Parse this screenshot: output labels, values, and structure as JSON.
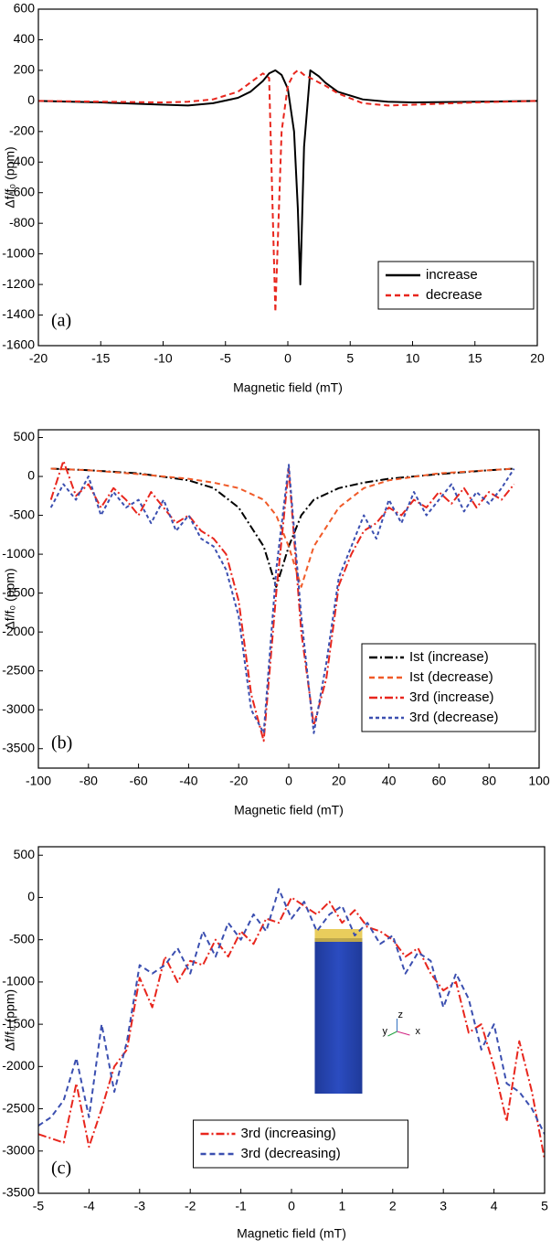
{
  "chart_data": [
    {
      "type": "line",
      "panel_label": "(a)",
      "x_label": "Magnetic field (mT)",
      "y_label": "Δf/f₀ (ppm)",
      "xlim": [
        -20,
        20
      ],
      "xticks": [
        -20,
        -15,
        -10,
        -5,
        0,
        5,
        10,
        15,
        20
      ],
      "ylim": [
        -1600,
        600
      ],
      "yticks": [
        -1600,
        -1400,
        -1200,
        -1000,
        -800,
        -600,
        -400,
        -200,
        0,
        200,
        400,
        600
      ],
      "legend": "lower right",
      "x": [
        -20,
        -15,
        -10,
        -8,
        -6,
        -4,
        -3,
        -2,
        -1.5,
        -1,
        -0.5,
        0,
        0.5,
        0.8,
        1,
        1.3,
        1.8,
        2.5,
        3,
        4,
        6,
        8,
        10,
        15,
        20
      ],
      "series": [
        {
          "name": "increase",
          "color": "#000000",
          "style": "solid",
          "values": [
            0,
            -10,
            -25,
            -30,
            -15,
            20,
            60,
            130,
            180,
            200,
            170,
            80,
            -200,
            -700,
            -1200,
            -300,
            200,
            160,
            120,
            60,
            10,
            -5,
            -10,
            -5,
            0
          ]
        },
        {
          "name": "decrease",
          "color": "#e8261d",
          "style": "dash",
          "values": [
            0,
            -5,
            -10,
            -5,
            10,
            60,
            120,
            180,
            150,
            -1380,
            -200,
            100,
            180,
            200,
            190,
            170,
            150,
            120,
            100,
            50,
            -15,
            -30,
            -25,
            -10,
            0
          ]
        }
      ]
    },
    {
      "type": "line",
      "panel_label": "(b)",
      "x_label": "Magnetic field (mT)",
      "y_label": "Δf/f₀ (ppm)",
      "xlim": [
        -100,
        100
      ],
      "xticks": [
        -100,
        -80,
        -60,
        -40,
        -20,
        0,
        20,
        40,
        60,
        80,
        100
      ],
      "ylim": [
        -3750,
        600
      ],
      "yticks": [
        -3500,
        -3000,
        -2500,
        -2000,
        -1500,
        -1000,
        -500,
        0,
        500
      ],
      "legend": "lower right",
      "series": [
        {
          "name": "Ist (increase)",
          "color": "#000000",
          "style": "dash-dot",
          "x": [
            -95,
            -80,
            -60,
            -40,
            -30,
            -20,
            -10,
            -5,
            0,
            5,
            10,
            20,
            30,
            40,
            60,
            80,
            90
          ],
          "values": [
            100,
            80,
            40,
            -50,
            -150,
            -400,
            -900,
            -1420,
            -900,
            -500,
            -300,
            -150,
            -80,
            -30,
            30,
            80,
            100
          ]
        },
        {
          "name": "Ist (decrease)",
          "color": "#f05a28",
          "style": "dash",
          "x": [
            -95,
            -80,
            -60,
            -40,
            -30,
            -20,
            -10,
            -5,
            0,
            5,
            10,
            20,
            30,
            40,
            60,
            80,
            90
          ],
          "values": [
            100,
            80,
            30,
            -30,
            -80,
            -150,
            -300,
            -500,
            -900,
            -1420,
            -900,
            -400,
            -150,
            -50,
            40,
            80,
            100
          ]
        },
        {
          "name": "3rd (increase)",
          "color": "#e8261d",
          "style": "dash-dot",
          "x": [
            -95,
            -90,
            -85,
            -80,
            -75,
            -70,
            -65,
            -60,
            -55,
            -50,
            -45,
            -40,
            -35,
            -30,
            -25,
            -20,
            -15,
            -10,
            -5,
            0,
            5,
            10,
            15,
            20,
            25,
            30,
            35,
            40,
            45,
            50,
            55,
            60,
            65,
            70,
            75,
            80,
            85,
            90
          ],
          "values": [
            -300,
            200,
            -250,
            -100,
            -400,
            -150,
            -300,
            -500,
            -200,
            -400,
            -600,
            -500,
            -700,
            -800,
            -1000,
            -1600,
            -2800,
            -3400,
            -1500,
            100,
            -2000,
            -3200,
            -2600,
            -1400,
            -1000,
            -700,
            -600,
            -400,
            -500,
            -300,
            -400,
            -200,
            -350,
            -150,
            -400,
            -200,
            -300,
            -100
          ]
        },
        {
          "name": "3rd (decrease)",
          "color": "#3b4fb0",
          "style": "dot",
          "x": [
            -95,
            -90,
            -85,
            -80,
            -75,
            -70,
            -65,
            -60,
            -55,
            -50,
            -45,
            -40,
            -35,
            -30,
            -25,
            -20,
            -15,
            -10,
            -5,
            0,
            5,
            10,
            15,
            20,
            25,
            30,
            35,
            40,
            45,
            50,
            55,
            60,
            65,
            70,
            75,
            80,
            85,
            90
          ],
          "values": [
            -400,
            -100,
            -300,
            0,
            -500,
            -200,
            -400,
            -300,
            -600,
            -300,
            -700,
            -500,
            -800,
            -900,
            -1200,
            -1800,
            -3000,
            -3300,
            -1200,
            150,
            -1800,
            -3300,
            -2400,
            -1300,
            -900,
            -500,
            -800,
            -300,
            -600,
            -200,
            -500,
            -300,
            -100,
            -450,
            -200,
            -350,
            -150,
            100
          ]
        }
      ]
    },
    {
      "type": "line",
      "panel_label": "(c)",
      "x_label": "Magnetic field (mT)",
      "y_label": "Δf/f₀ (ppm)",
      "xlim": [
        -5,
        5
      ],
      "xticks": [
        -5,
        -4,
        -3,
        -2,
        -1,
        0,
        1,
        2,
        3,
        4,
        5
      ],
      "ylim": [
        -3500,
        600
      ],
      "yticks": [
        -3500,
        -3000,
        -2500,
        -2000,
        -1500,
        -1000,
        -500,
        0,
        500
      ],
      "legend": "lower center",
      "inset_labels": [
        "y",
        "z",
        "x"
      ],
      "x": [
        -5,
        -4.75,
        -4.5,
        -4.25,
        -4,
        -3.75,
        -3.5,
        -3.25,
        -3,
        -2.75,
        -2.5,
        -2.25,
        -2,
        -1.75,
        -1.5,
        -1.25,
        -1,
        -0.75,
        -0.5,
        -0.25,
        0,
        0.25,
        0.5,
        0.75,
        1,
        1.25,
        1.5,
        1.75,
        2,
        2.25,
        2.5,
        2.75,
        3,
        3.25,
        3.5,
        3.75,
        4,
        4.25,
        4.5,
        4.75,
        5
      ],
      "series": [
        {
          "name": "3rd (increasing)",
          "color": "#e8261d",
          "style": "dash-dot",
          "values": [
            -2800,
            -2850,
            -2900,
            -2200,
            -2950,
            -2500,
            -2000,
            -1800,
            -950,
            -1300,
            -700,
            -1000,
            -750,
            -800,
            -500,
            -700,
            -400,
            -550,
            -250,
            -300,
            0,
            -100,
            -200,
            -50,
            -300,
            -150,
            -350,
            -400,
            -500,
            -700,
            -600,
            -900,
            -1100,
            -1000,
            -1600,
            -1500,
            -2000,
            -2650,
            -1700,
            -2300,
            -3100
          ]
        },
        {
          "name": "3rd (decreasing)",
          "color": "#3b4fb0",
          "style": "dash",
          "values": [
            -2700,
            -2600,
            -2400,
            -1900,
            -2600,
            -1500,
            -2300,
            -1700,
            -800,
            -900,
            -800,
            -600,
            -900,
            -400,
            -700,
            -300,
            -500,
            -200,
            -400,
            100,
            -250,
            -50,
            -400,
            -200,
            -100,
            -450,
            -300,
            -550,
            -450,
            -900,
            -650,
            -750,
            -1300,
            -900,
            -1200,
            -1800,
            -1500,
            -2200,
            -2300,
            -2500,
            -2800
          ]
        }
      ]
    }
  ]
}
